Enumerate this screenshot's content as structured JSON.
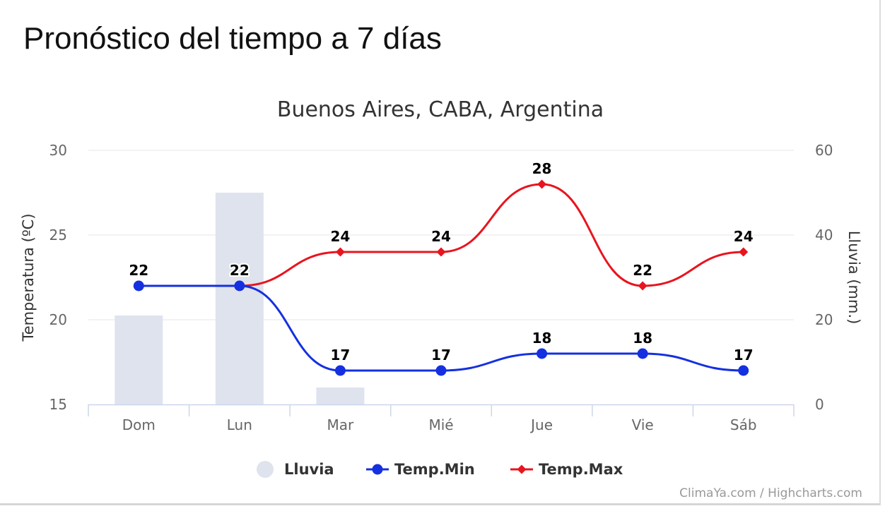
{
  "page": {
    "title": "Pronóstico del tiempo a 7 días",
    "credits": "ClimaYa.com / Highcharts.com"
  },
  "chart_data": {
    "type": "line",
    "title": "Buenos Aires, CABA, Argentina",
    "categories": [
      "Dom",
      "Lun",
      "Mar",
      "Mié",
      "Jue",
      "Vie",
      "Sáb"
    ],
    "y_left": {
      "label": "Temperatura (ºC)",
      "range": [
        15,
        30
      ],
      "ticks": [
        15,
        20,
        25,
        30
      ]
    },
    "y_right": {
      "label": "Lluvia (mm.)",
      "range": [
        0,
        60
      ],
      "ticks": [
        0,
        20,
        40,
        60
      ]
    },
    "series": [
      {
        "name": "Lluvia",
        "type": "bar",
        "axis": "right",
        "color": "#dfe3ee",
        "values": [
          21,
          50,
          4,
          0,
          0,
          0,
          0
        ]
      },
      {
        "name": "Temp.Min",
        "type": "line",
        "axis": "left",
        "color": "#1430e0",
        "marker": "circle",
        "values": [
          22,
          22,
          17,
          17,
          18,
          18,
          17
        ],
        "labels": [
          "22",
          "22",
          "17",
          "17",
          "18",
          "18",
          "17"
        ]
      },
      {
        "name": "Temp.Max",
        "type": "line",
        "axis": "left",
        "color": "#e8141e",
        "marker": "diamond",
        "values": [
          22,
          22,
          24,
          24,
          28,
          22,
          24
        ],
        "labels": [
          "22",
          "22",
          "24",
          "24",
          "28",
          "22",
          "24"
        ]
      }
    ],
    "grid": true,
    "legend_position": "bottom-center"
  }
}
